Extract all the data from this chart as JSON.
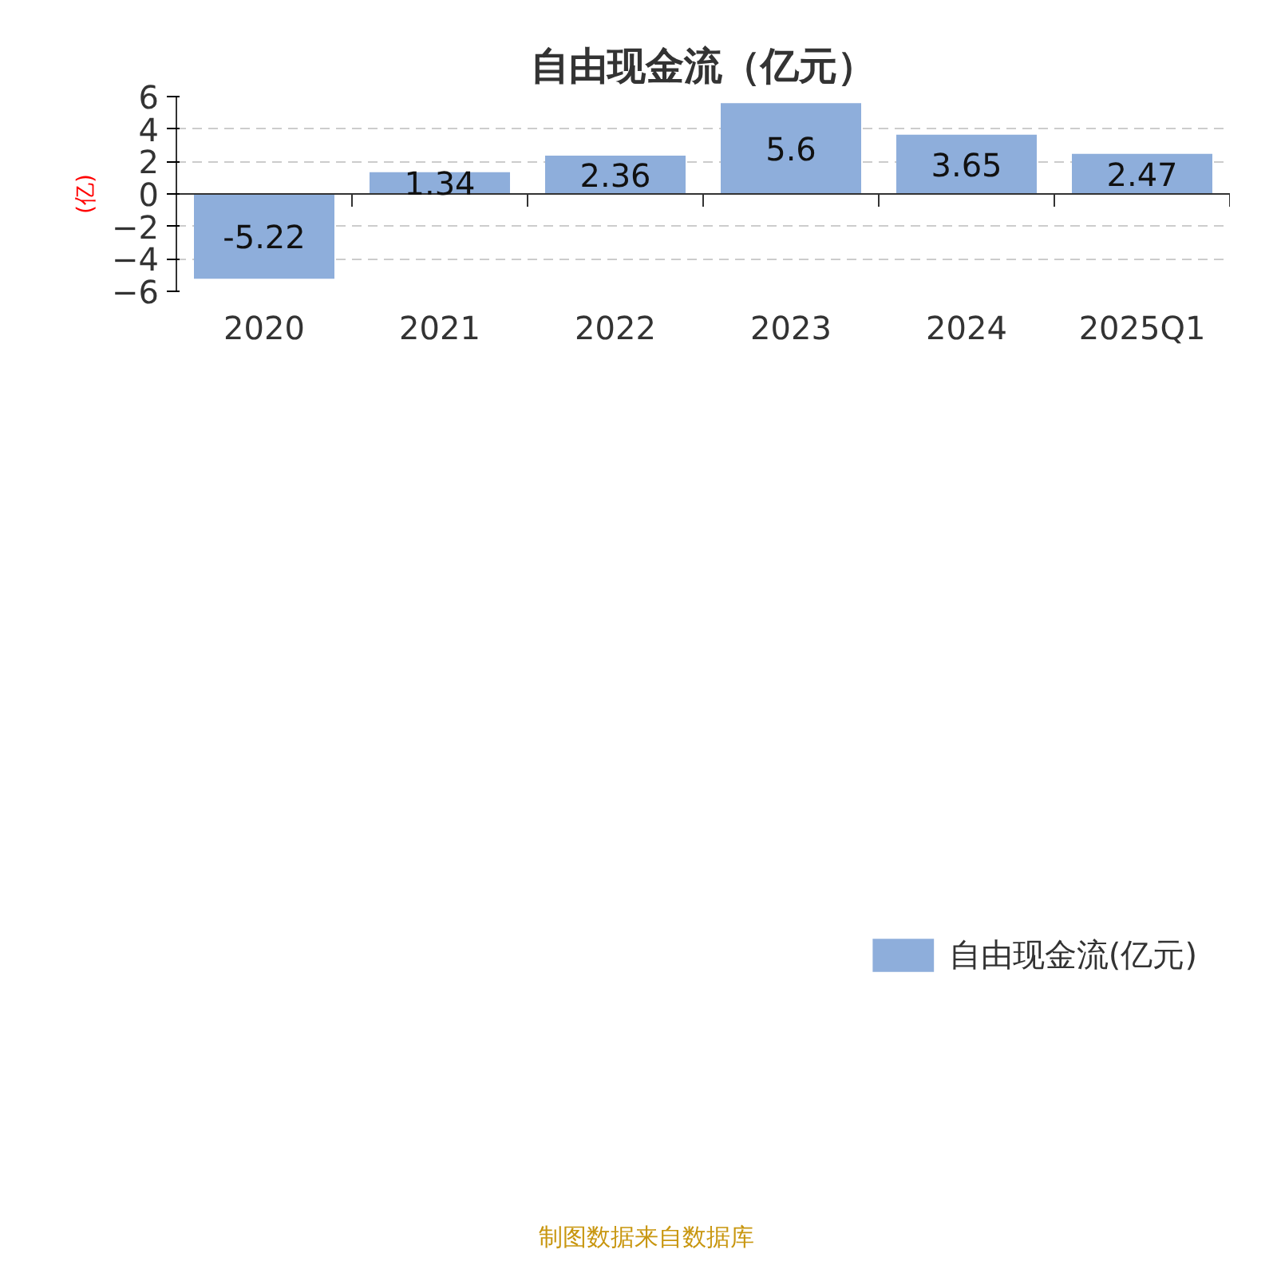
{
  "chart_data": {
    "type": "bar",
    "title": "自由现金流（亿元）",
    "ylabel": "(亿)",
    "categories": [
      "2020",
      "2021",
      "2022",
      "2023",
      "2024",
      "2025Q1"
    ],
    "series": [
      {
        "name": "自由现金流(亿元)",
        "color": "#8eaedb",
        "values": [
          -5.22,
          1.34,
          2.36,
          5.6,
          3.65,
          2.47
        ]
      }
    ],
    "ylim": [
      -6,
      6
    ],
    "yticks": [
      -6,
      -4,
      -2,
      0,
      2,
      4,
      6
    ],
    "grid": "y",
    "legend": "bottom",
    "data_labels": true,
    "annotations": [
      "制图数据来自数据库"
    ]
  }
}
